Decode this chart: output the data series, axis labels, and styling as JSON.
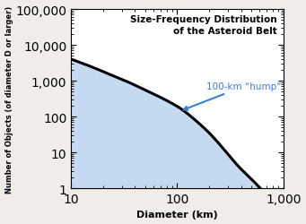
{
  "title_line1": "Size-Frequency Distribution",
  "title_line2": "of the Asteroid Belt",
  "xlabel": "Diameter (km)",
  "ylabel": "Number of Objects (of diameter D or larger)",
  "xlim": [
    10,
    1000
  ],
  "ylim": [
    1,
    100000
  ],
  "fill_color": "#c5d9f0",
  "line_color": "#000000",
  "line_width": 2.2,
  "annotation_text": "100-km “hump”",
  "annotation_color": "#3b7fd4",
  "background_color": "#f0ede8",
  "plot_bg_color": "#ffffff",
  "curve_x": [
    10,
    13,
    17,
    22,
    30,
    40,
    55,
    70,
    90,
    110,
    130,
    160,
    200,
    250,
    300,
    380,
    500,
    650,
    800,
    1000
  ],
  "curve_y": [
    4000,
    3000,
    2200,
    1600,
    1100,
    750,
    480,
    340,
    230,
    160,
    110,
    65,
    35,
    17,
    9,
    4,
    1.8,
    0.8,
    0.4,
    0.15
  ]
}
